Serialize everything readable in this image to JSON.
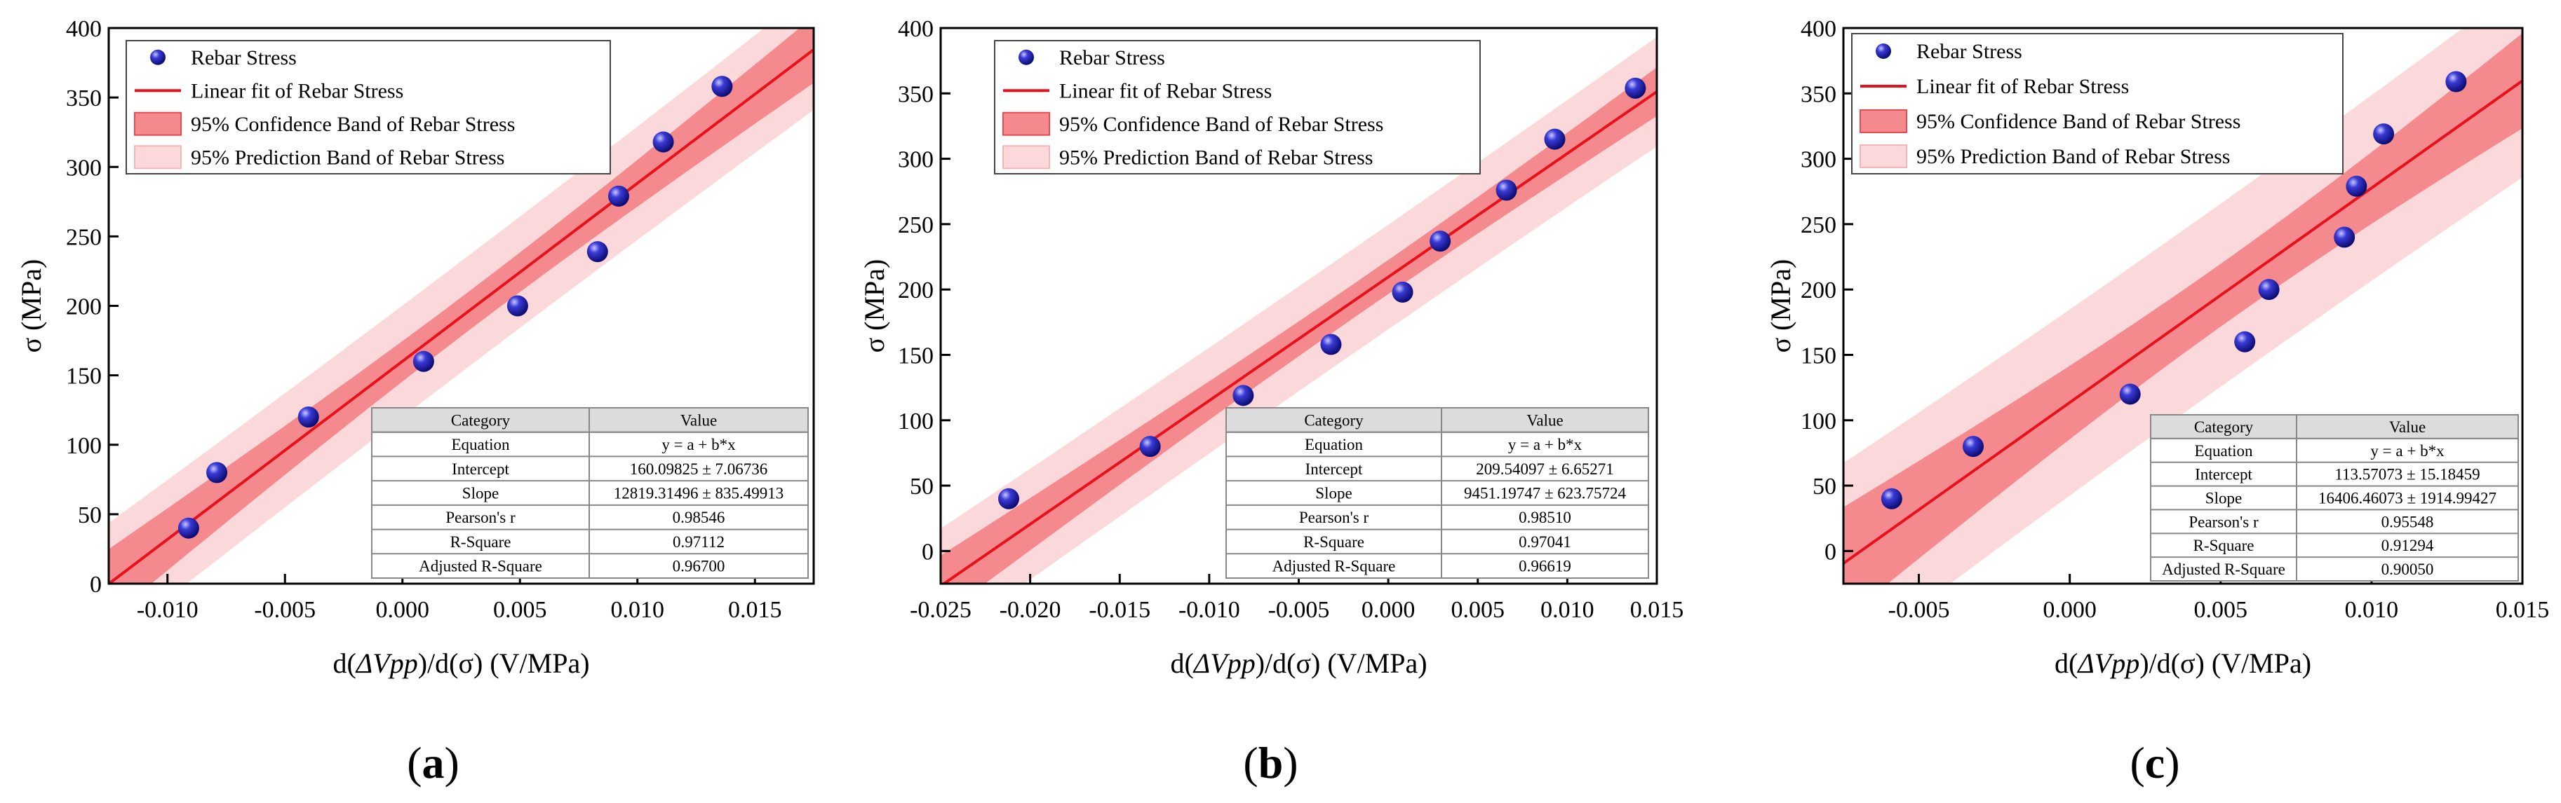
{
  "chart_data": [
    {
      "type": "scatter",
      "panel_label": "a",
      "xlabel_prefix": "d(",
      "xlabel_italic": "ΔVpp",
      "xlabel_suffix": ")/d(σ) (V/MPa)",
      "ylabel": "σ (MPa)",
      "xlim": [
        -0.0125,
        0.0175
      ],
      "ylim": [
        0,
        400
      ],
      "xticks": [
        -0.01,
        -0.005,
        0.0,
        0.005,
        0.01,
        0.015
      ],
      "xtick_labels": [
        "-0.010",
        "-0.005",
        "0.000",
        "0.005",
        "0.010",
        "0.015"
      ],
      "yticks": [
        0,
        50,
        100,
        150,
        200,
        250,
        300,
        350,
        400
      ],
      "ytick_labels": [
        "0",
        "50",
        "100",
        "150",
        "200",
        "250",
        "300",
        "350",
        "400"
      ],
      "series": [
        {
          "name": "Rebar Stress",
          "x": [
            -0.0091,
            -0.0079,
            -0.004,
            0.0009,
            0.0049,
            0.0083,
            0.0092,
            0.0111,
            0.0136
          ],
          "y": [
            40,
            80,
            120,
            160,
            200,
            239,
            279,
            318,
            358
          ]
        }
      ],
      "fit": {
        "intercept": 160.09825,
        "slope": 12819.31496,
        "conf_halfwidth": 14,
        "pred_halfwidth": 40
      },
      "legend": [
        "Rebar Stress",
        "Linear fit of Rebar Stress",
        "95% Confidence Band of Rebar Stress",
        "95% Prediction Band of Rebar Stress"
      ],
      "stats_table": {
        "headers": [
          "Category",
          "Value"
        ],
        "rows": [
          [
            "Equation",
            "y = a + b*x"
          ],
          [
            "Intercept",
            "160.09825 ± 7.06736"
          ],
          [
            "Slope",
            "12819.31496 ± 835.49913"
          ],
          [
            "Pearson's r",
            "0.98546"
          ],
          [
            "R-Square",
            "0.97112"
          ],
          [
            "Adjusted R-Square",
            "0.96700"
          ]
        ]
      }
    },
    {
      "type": "scatter",
      "panel_label": "b",
      "xlabel_prefix": "d(",
      "xlabel_italic": "ΔVpp",
      "xlabel_suffix": ")/d(σ) (V/MPa)",
      "ylabel": "σ (MPa)",
      "xlim": [
        -0.025,
        0.015
      ],
      "ylim": [
        -25,
        400
      ],
      "xticks": [
        -0.025,
        -0.02,
        -0.015,
        -0.01,
        -0.005,
        0.0,
        0.005,
        0.01,
        0.015
      ],
      "xtick_labels": [
        "-0.025",
        "-0.020",
        "-0.015",
        "-0.010",
        "-0.005",
        "0.000",
        "0.005",
        "0.010",
        "0.015"
      ],
      "yticks": [
        0,
        50,
        100,
        150,
        200,
        250,
        300,
        350,
        400
      ],
      "ytick_labels": [
        "0",
        "50",
        "100",
        "150",
        "200",
        "250",
        "300",
        "350",
        "400"
      ],
      "series": [
        {
          "name": "Rebar Stress",
          "x": [
            -0.0212,
            -0.0133,
            -0.0081,
            -0.0032,
            0.0008,
            0.0029,
            0.0066,
            0.0093,
            0.0138
          ],
          "y": [
            40,
            80,
            119,
            158,
            198,
            237,
            276,
            315,
            354
          ]
        }
      ],
      "fit": {
        "intercept": 209.54097,
        "slope": 9451.19747,
        "conf_halfwidth": 13,
        "pred_halfwidth": 40
      },
      "legend": [
        "Rebar Stress",
        "Linear fit of Rebar Stress",
        "95% Confidence Band of Rebar Stress",
        "95% Prediction Band of Rebar Stress"
      ],
      "stats_table": {
        "headers": [
          "Category",
          "Value"
        ],
        "rows": [
          [
            "Equation",
            "y = a + b*x"
          ],
          [
            "Intercept",
            "209.54097 ± 6.65271"
          ],
          [
            "Slope",
            "9451.19747 ± 623.75724"
          ],
          [
            "Pearson's r",
            "0.98510"
          ],
          [
            "R-Square",
            "0.97041"
          ],
          [
            "Adjusted R-Square",
            "0.96619"
          ]
        ]
      }
    },
    {
      "type": "scatter",
      "panel_label": "c",
      "xlabel_prefix": "d(",
      "xlabel_italic": "ΔVpp",
      "xlabel_suffix": ")/d(σ) (V/MPa)",
      "ylabel": "σ (MPa)",
      "xlim": [
        -0.0075,
        0.015
      ],
      "ylim": [
        -25,
        400
      ],
      "xticks": [
        -0.005,
        0.0,
        0.005,
        0.01,
        0.015
      ],
      "xtick_labels": [
        "-0.005",
        "0.000",
        "0.005",
        "0.010",
        "0.015"
      ],
      "yticks": [
        0,
        50,
        100,
        150,
        200,
        250,
        300,
        350,
        400
      ],
      "ytick_labels": [
        "0",
        "50",
        "100",
        "150",
        "200",
        "250",
        "300",
        "350",
        "400"
      ],
      "series": [
        {
          "name": "Rebar Stress",
          "x": [
            -0.0059,
            -0.0032,
            0.002,
            0.0058,
            0.0066,
            0.0091,
            0.0095,
            0.0104,
            0.0128
          ],
          "y": [
            40,
            80,
            120,
            160,
            200,
            240,
            279,
            319,
            359
          ]
        }
      ],
      "fit": {
        "intercept": 113.57073,
        "slope": 16406.46073,
        "conf_halfwidth": 24,
        "pred_halfwidth": 70
      },
      "legend": [
        "Rebar Stress",
        "Linear fit of Rebar Stress",
        "95% Confidence Band of Rebar Stress",
        "95% Prediction Band of Rebar Stress"
      ],
      "stats_table": {
        "headers": [
          "Category",
          "Value"
        ],
        "rows": [
          [
            "Equation",
            "y = a + b*x"
          ],
          [
            "Intercept",
            "113.57073 ± 15.18459"
          ],
          [
            "Slope",
            "16406.46073 ± 1914.99427"
          ],
          [
            "Pearson's r",
            "0.95548"
          ],
          [
            "R-Square",
            "0.91294"
          ],
          [
            "Adjusted R-Square",
            "0.90050"
          ]
        ]
      }
    }
  ],
  "colors": {
    "marker": "#1a1aa6",
    "marker_highlight": "#8c8cff",
    "fit_line": "#e8101a",
    "confidence_band": "#f48a8e",
    "prediction_band": "#fbd9db",
    "table_header": "#dcdcdc"
  }
}
